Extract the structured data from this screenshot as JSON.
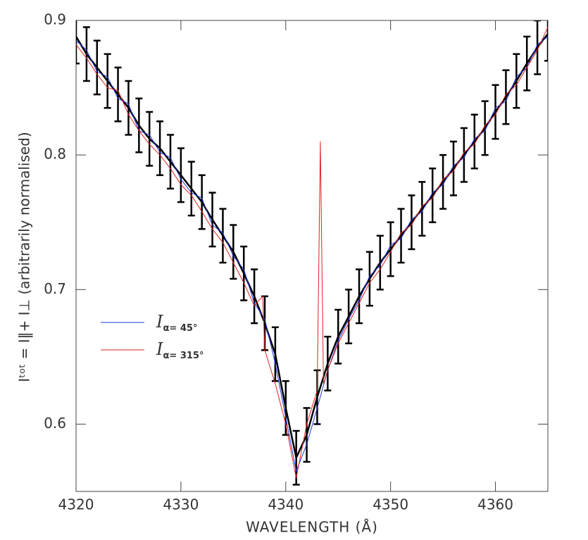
{
  "chart_data": {
    "type": "line",
    "x_label": "WAVELENGTH (Å)",
    "y_label": "Iᵗᵒᵗ = I‖+ I⊥ (arbitrarily normalised)",
    "x": [
      4320,
      4321,
      4322,
      4323,
      4324,
      4325,
      4326,
      4327,
      4328,
      4329,
      4330,
      4331,
      4332,
      4333,
      4334,
      4335,
      4336,
      4337,
      4338,
      4339,
      4340,
      4341,
      4342,
      4343,
      4344,
      4345,
      4346,
      4347,
      4348,
      4349,
      4350,
      4351,
      4352,
      4353,
      4354,
      4355,
      4356,
      4357,
      4358,
      4359,
      4360,
      4361,
      4362,
      4363,
      4364,
      4365
    ],
    "observed": {
      "color": "#000000",
      "values": [
        0.888,
        0.875,
        0.865,
        0.855,
        0.845,
        0.835,
        0.822,
        0.812,
        0.805,
        0.795,
        0.785,
        0.775,
        0.765,
        0.752,
        0.74,
        0.728,
        0.712,
        0.695,
        0.675,
        0.652,
        0.612,
        0.575,
        0.592,
        0.62,
        0.645,
        0.665,
        0.68,
        0.695,
        0.708,
        0.72,
        0.73,
        0.74,
        0.75,
        0.76,
        0.77,
        0.78,
        0.79,
        0.8,
        0.81,
        0.82,
        0.832,
        0.843,
        0.855,
        0.868,
        0.88,
        0.89
      ],
      "errors": [
        0.02,
        0.02,
        0.02,
        0.02,
        0.02,
        0.02,
        0.02,
        0.02,
        0.02,
        0.02,
        0.02,
        0.02,
        0.02,
        0.02,
        0.02,
        0.02,
        0.02,
        0.02,
        0.02,
        0.02,
        0.02,
        0.02,
        0.02,
        0.02,
        0.02,
        0.02,
        0.02,
        0.02,
        0.02,
        0.02,
        0.02,
        0.02,
        0.02,
        0.02,
        0.02,
        0.02,
        0.02,
        0.02,
        0.02,
        0.02,
        0.02,
        0.02,
        0.02,
        0.02,
        0.02,
        0.02
      ]
    },
    "series": [
      {
        "name": "Iα= 45°",
        "color": "#2233dd",
        "values": [
          0.885,
          0.878,
          0.862,
          0.858,
          0.842,
          0.838,
          0.818,
          0.815,
          0.802,
          0.798,
          0.782,
          0.772,
          0.768,
          0.748,
          0.742,
          0.725,
          0.715,
          0.69,
          0.678,
          0.645,
          0.605,
          0.565,
          0.585,
          0.612,
          0.64,
          0.662,
          0.678,
          0.692,
          0.71,
          0.718,
          0.733,
          0.738,
          0.752,
          0.758,
          0.772,
          0.778,
          0.792,
          0.798,
          0.812,
          0.818,
          0.835,
          0.84,
          0.858,
          0.865,
          0.882,
          0.888
        ]
      },
      {
        "name": "Iα= 315°",
        "color": "#e02020",
        "x": [
          4320,
          4321,
          4322,
          4323,
          4324,
          4325,
          4326,
          4327,
          4328,
          4329,
          4330,
          4331,
          4332,
          4333,
          4334,
          4335,
          4336,
          4337,
          4337.8,
          4338,
          4339,
          4340,
          4341,
          4342,
          4343,
          4343.3,
          4343.6,
          4344,
          4345,
          4346,
          4347,
          4348,
          4349,
          4350,
          4351,
          4352,
          4353,
          4354,
          4355,
          4356,
          4357,
          4358,
          4359,
          4360,
          4361,
          4362,
          4363,
          4364,
          4365
        ],
        "values": [
          0.882,
          0.872,
          0.86,
          0.85,
          0.848,
          0.83,
          0.818,
          0.808,
          0.8,
          0.79,
          0.778,
          0.77,
          0.758,
          0.745,
          0.735,
          0.72,
          0.705,
          0.688,
          0.695,
          0.655,
          0.63,
          0.6,
          0.56,
          0.6,
          0.625,
          0.81,
          0.63,
          0.64,
          0.66,
          0.675,
          0.69,
          0.705,
          0.715,
          0.728,
          0.742,
          0.748,
          0.762,
          0.768,
          0.782,
          0.788,
          0.802,
          0.808,
          0.822,
          0.83,
          0.845,
          0.852,
          0.865,
          0.878,
          0.895
        ]
      }
    ],
    "xlim": [
      4320,
      4365
    ],
    "xticks": [
      4320,
      4330,
      4340,
      4350,
      4360
    ],
    "ylim": [
      0.55,
      0.9
    ],
    "yticks": [
      0.6,
      0.7,
      0.8,
      0.9
    ]
  }
}
